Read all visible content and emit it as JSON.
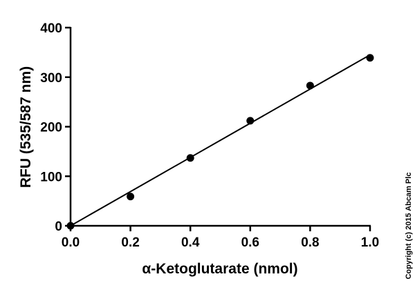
{
  "chart_data": {
    "type": "scatter",
    "xlabel": "α-Ketoglutarate (nmol)",
    "ylabel": "RFU (535/587 nm)",
    "xlim": [
      0,
      1.0
    ],
    "ylim": [
      0,
      400
    ],
    "x_ticks": [
      "0.0",
      "0.2",
      "0.4",
      "0.6",
      "0.8",
      "1.0"
    ],
    "y_ticks": [
      "0",
      "100",
      "200",
      "300",
      "400"
    ],
    "x_tick_values": [
      0,
      0.2,
      0.4,
      0.6,
      0.8,
      1.0
    ],
    "y_tick_values": [
      0,
      100,
      200,
      300,
      400
    ],
    "series": [
      {
        "x": [
          0,
          0.2,
          0.4,
          0.6,
          0.8,
          1.0
        ],
        "y": [
          0,
          59,
          137,
          212,
          283,
          339
        ]
      }
    ],
    "fit_line": {
      "x": [
        0,
        1.0
      ],
      "y": [
        0,
        345
      ]
    },
    "grid": false,
    "colors": {
      "marker": "#000000",
      "line": "#000000",
      "axis": "#000000"
    }
  },
  "copyright": "Copyright (c) 2015 Abcam Plc"
}
